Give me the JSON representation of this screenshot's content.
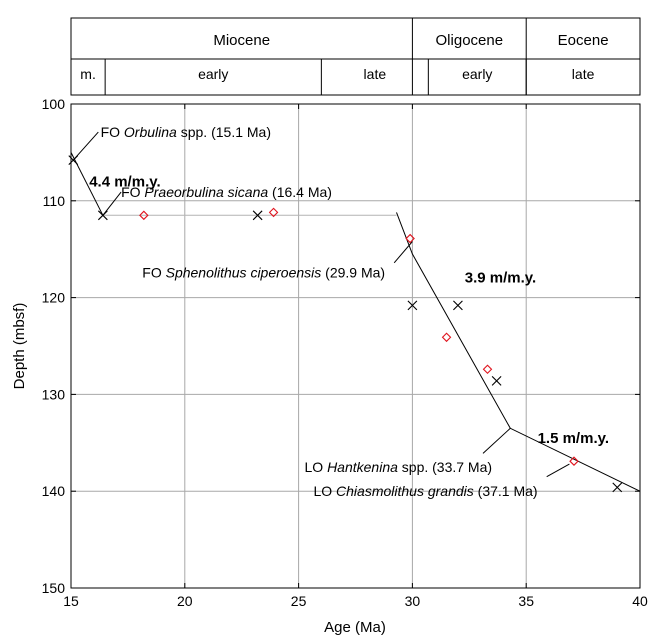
{
  "chart_data": {
    "type": "scatter",
    "xlabel": "Age (Ma)",
    "ylabel": "Depth (mbsf)",
    "xlim": [
      15,
      40
    ],
    "ylim": [
      150,
      100
    ],
    "y_axis_inverted": true,
    "xticks": [
      15,
      20,
      25,
      30,
      35,
      40
    ],
    "yticks": [
      100,
      110,
      120,
      130,
      140,
      150
    ],
    "grid": true,
    "epochs": [
      {
        "name": "Miocene",
        "start": 15,
        "end": 30
      },
      {
        "name": "Oligocene",
        "start": 30,
        "end": 35
      },
      {
        "name": "Eocene",
        "start": 35,
        "end": 40
      }
    ],
    "subdivisions": [
      {
        "name": "m.",
        "start": 15,
        "end": 16.5
      },
      {
        "name": "early",
        "start": 16.5,
        "end": 26
      },
      {
        "name": "late",
        "start": 26,
        "end": 30.7
      },
      {
        "name": "early",
        "start": 30.7,
        "end": 35
      },
      {
        "name": "late",
        "start": 35,
        "end": 40
      }
    ],
    "series": [
      {
        "marker": "x",
        "color": "#000000",
        "points": [
          {
            "x": 15.1,
            "y": 105.8
          },
          {
            "x": 16.4,
            "y": 111.5
          },
          {
            "x": 23.2,
            "y": 111.5
          },
          {
            "x": 30.0,
            "y": 120.8
          },
          {
            "x": 32.0,
            "y": 120.8
          },
          {
            "x": 33.7,
            "y": 128.6
          },
          {
            "x": 39.0,
            "y": 139.6
          }
        ]
      },
      {
        "marker": "diamond",
        "color": "#e0141e",
        "points": [
          {
            "x": 18.2,
            "y": 111.5
          },
          {
            "x": 23.9,
            "y": 111.2
          },
          {
            "x": 29.9,
            "y": 113.9
          },
          {
            "x": 31.5,
            "y": 124.1
          },
          {
            "x": 33.3,
            "y": 127.4
          },
          {
            "x": 37.1,
            "y": 136.9
          }
        ]
      }
    ],
    "rate_lines": [
      {
        "color": "#000000",
        "points": [
          [
            15.0,
            105.0
          ],
          [
            16.4,
            111.5
          ]
        ]
      },
      {
        "color": "#b4b4b4",
        "points": [
          [
            16.4,
            111.5
          ],
          [
            29.3,
            111.5
          ]
        ]
      },
      {
        "color": "#000000",
        "points": [
          [
            29.3,
            111.2
          ],
          [
            30.0,
            115.5
          ],
          [
            34.3,
            133.5
          ],
          [
            40.0,
            140.0
          ]
        ]
      }
    ],
    "rate_labels": [
      {
        "text": "4.4 m/m.y.",
        "x": 15.8,
        "y": 108.0
      },
      {
        "text": "3.9 m/m.y.",
        "x": 32.3,
        "y": 117.9
      },
      {
        "text": "1.5 m/m.y.",
        "x": 35.5,
        "y": 134.5
      }
    ],
    "annotations": [
      {
        "prefix": "FO ",
        "taxon": "Orbulina",
        "suffix": " spp. (15.1 Ma)",
        "x": 16.3,
        "y": 102.9,
        "anchor": "start",
        "leader": [
          [
            16.2,
            102.9
          ],
          [
            15.1,
            105.8
          ]
        ]
      },
      {
        "prefix": "FO ",
        "taxon": "Praeorbulina sicana",
        "suffix": " (16.4 Ma)",
        "x": 17.2,
        "y": 109.1,
        "anchor": "start",
        "leader": [
          [
            17.2,
            109.1
          ],
          [
            16.4,
            111.5
          ]
        ]
      },
      {
        "prefix": "FO ",
        "taxon": "Sphenolithus ciperoensis",
        "suffix": " (29.9 Ma)",
        "x": 28.8,
        "y": 117.4,
        "anchor": "end",
        "leader": [
          [
            29.2,
            116.4
          ],
          [
            30.0,
            114.2
          ]
        ]
      },
      {
        "prefix": "LO ",
        "taxon": "Hantkenina",
        "suffix": " spp. (33.7 Ma)",
        "x": 33.5,
        "y": 137.5,
        "anchor": "end",
        "leader": [
          [
            33.1,
            136.1
          ],
          [
            34.3,
            133.5
          ]
        ]
      },
      {
        "prefix": "LO ",
        "taxon": "Chiasmolithus grandis",
        "suffix": " (37.1 Ma)",
        "x": 35.5,
        "y": 140.0,
        "anchor": "end",
        "leader": [
          [
            35.9,
            138.5
          ],
          [
            36.9,
            137.2
          ]
        ]
      }
    ]
  }
}
